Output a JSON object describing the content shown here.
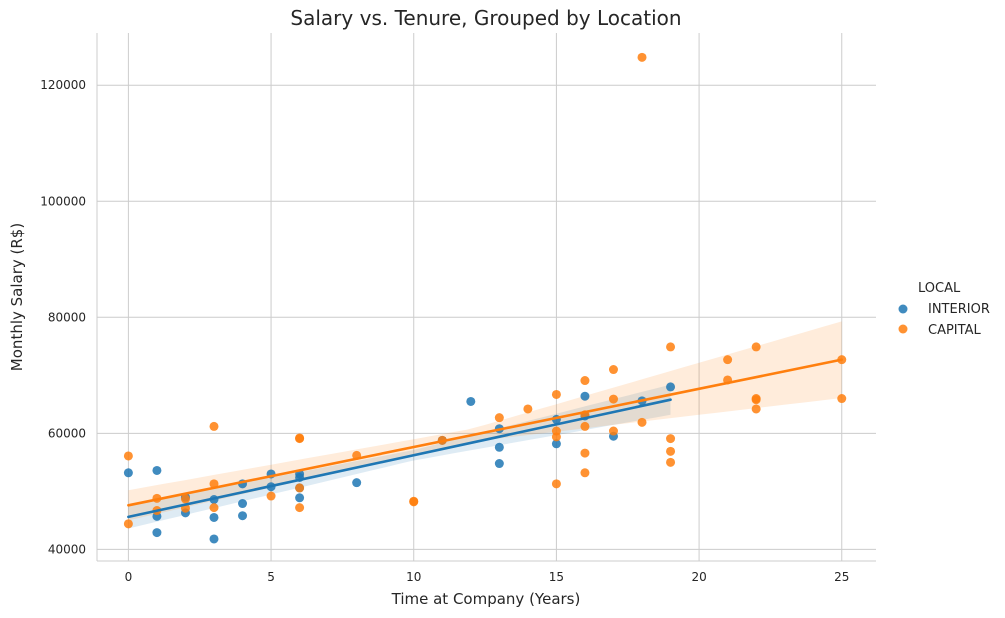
{
  "chart_data": {
    "type": "scatter",
    "title": "Salary vs. Tenure, Grouped by Location",
    "xlabel": "Time at Company (Years)",
    "ylabel": "Monthly Salary (R$)",
    "xlim": [
      -1.1,
      26.2
    ],
    "ylim": [
      38000,
      129000
    ],
    "xticks": [
      0,
      5,
      10,
      15,
      20,
      25
    ],
    "yticks": [
      40000,
      60000,
      80000,
      100000,
      120000
    ],
    "xtick_labels": [
      "0",
      "5",
      "10",
      "15",
      "20",
      "25"
    ],
    "ytick_labels": [
      "40000",
      "60000",
      "80000",
      "100000",
      "120000"
    ],
    "grid": true,
    "legend": {
      "title": "LOCAL",
      "placement": "right"
    },
    "series": [
      {
        "name": "INTERIOR",
        "color": "#1f77b4",
        "points": [
          [
            0,
            53200
          ],
          [
            1,
            53600
          ],
          [
            1,
            45700
          ],
          [
            1,
            42900
          ],
          [
            2,
            49000
          ],
          [
            2,
            46300
          ],
          [
            3,
            48600
          ],
          [
            3,
            45500
          ],
          [
            3,
            41800
          ],
          [
            4,
            51300
          ],
          [
            4,
            47900
          ],
          [
            4,
            45800
          ],
          [
            5,
            53000
          ],
          [
            5,
            50800
          ],
          [
            6,
            53000
          ],
          [
            6,
            52400
          ],
          [
            6,
            50600
          ],
          [
            6,
            48900
          ],
          [
            8,
            51500
          ],
          [
            11,
            58800
          ],
          [
            12,
            65500
          ],
          [
            13,
            60800
          ],
          [
            13,
            57600
          ],
          [
            13,
            54800
          ],
          [
            15,
            62400
          ],
          [
            15,
            58200
          ],
          [
            16,
            66400
          ],
          [
            16,
            63000
          ],
          [
            17,
            59500
          ],
          [
            18,
            65600
          ],
          [
            19,
            68000
          ]
        ],
        "fit": {
          "x0": 0,
          "y0": 45600,
          "x1": 19,
          "y1": 65800,
          "band": [
            [
              0,
              2000
            ],
            [
              10,
              900
            ],
            [
              19,
              2600
            ]
          ]
        }
      },
      {
        "name": "CAPITAL",
        "color": "#ff7f0e",
        "points": [
          [
            0,
            56100
          ],
          [
            0,
            44400
          ],
          [
            1,
            48800
          ],
          [
            1,
            46700
          ],
          [
            2,
            48700
          ],
          [
            2,
            47100
          ],
          [
            3,
            61200
          ],
          [
            3,
            51300
          ],
          [
            3,
            47200
          ],
          [
            5,
            49200
          ],
          [
            6,
            59100
          ],
          [
            6,
            59200
          ],
          [
            6,
            50600
          ],
          [
            6,
            47200
          ],
          [
            8,
            56200
          ],
          [
            10,
            48300
          ],
          [
            10,
            48200
          ],
          [
            11,
            58800
          ],
          [
            13,
            62700
          ],
          [
            14,
            64200
          ],
          [
            15,
            66700
          ],
          [
            15,
            60400
          ],
          [
            15,
            59400
          ],
          [
            15,
            51300
          ],
          [
            16,
            69100
          ],
          [
            16,
            63200
          ],
          [
            16,
            61200
          ],
          [
            16,
            56600
          ],
          [
            16,
            53200
          ],
          [
            17,
            71000
          ],
          [
            17,
            65900
          ],
          [
            17,
            60400
          ],
          [
            18,
            124800
          ],
          [
            18,
            61900
          ],
          [
            19,
            74900
          ],
          [
            19,
            59100
          ],
          [
            19,
            56900
          ],
          [
            19,
            55000
          ],
          [
            21,
            72700
          ],
          [
            21,
            69200
          ],
          [
            22,
            74900
          ],
          [
            22,
            66000
          ],
          [
            22,
            65800
          ],
          [
            22,
            64200
          ],
          [
            25,
            72700
          ],
          [
            25,
            66000
          ]
        ],
        "fit": {
          "x0": 0,
          "y0": 47600,
          "x1": 25,
          "y1": 72700,
          "band": [
            [
              0,
              2600
            ],
            [
              12,
              1100
            ],
            [
              25,
              6600
            ]
          ]
        }
      }
    ]
  }
}
